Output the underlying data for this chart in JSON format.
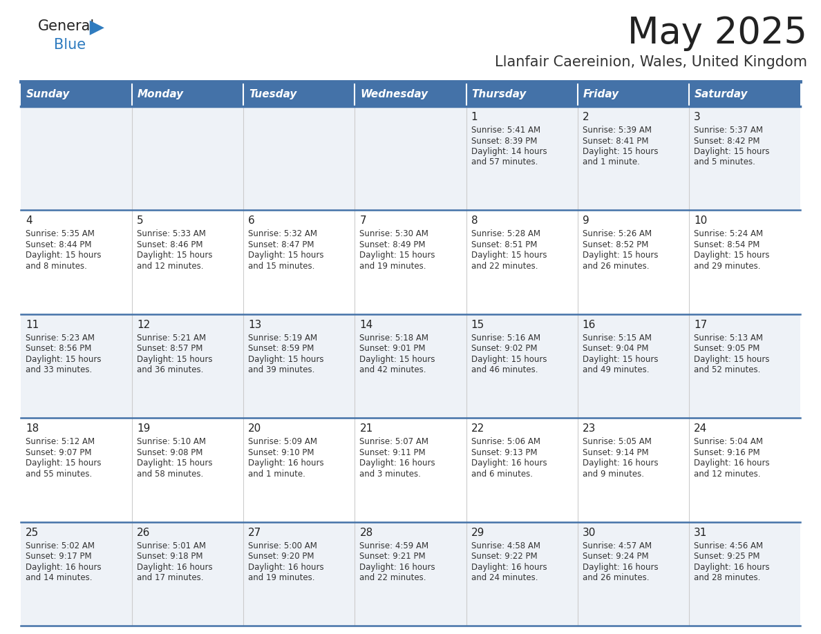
{
  "title": "May 2025",
  "subtitle": "Llanfair Caereinion, Wales, United Kingdom",
  "days_of_week": [
    "Sunday",
    "Monday",
    "Tuesday",
    "Wednesday",
    "Thursday",
    "Friday",
    "Saturday"
  ],
  "header_bg": "#4472a8",
  "header_text": "#ffffff",
  "row_bg_odd": "#eef2f7",
  "row_bg_even": "#ffffff",
  "cell_text_color": "#333333",
  "day_num_color": "#222222",
  "divider_color": "#4472a8",
  "logo_text_color": "#222222",
  "logo_blue_color": "#2e7bbf",
  "title_color": "#222222",
  "subtitle_color": "#333333",
  "calendar_data": [
    [
      {
        "day": "",
        "sunrise": "",
        "sunset": "",
        "daylight": ""
      },
      {
        "day": "",
        "sunrise": "",
        "sunset": "",
        "daylight": ""
      },
      {
        "day": "",
        "sunrise": "",
        "sunset": "",
        "daylight": ""
      },
      {
        "day": "",
        "sunrise": "",
        "sunset": "",
        "daylight": ""
      },
      {
        "day": "1",
        "sunrise": "5:41 AM",
        "sunset": "8:39 PM",
        "daylight": "14 hours\nand 57 minutes."
      },
      {
        "day": "2",
        "sunrise": "5:39 AM",
        "sunset": "8:41 PM",
        "daylight": "15 hours\nand 1 minute."
      },
      {
        "day": "3",
        "sunrise": "5:37 AM",
        "sunset": "8:42 PM",
        "daylight": "15 hours\nand 5 minutes."
      }
    ],
    [
      {
        "day": "4",
        "sunrise": "5:35 AM",
        "sunset": "8:44 PM",
        "daylight": "15 hours\nand 8 minutes."
      },
      {
        "day": "5",
        "sunrise": "5:33 AM",
        "sunset": "8:46 PM",
        "daylight": "15 hours\nand 12 minutes."
      },
      {
        "day": "6",
        "sunrise": "5:32 AM",
        "sunset": "8:47 PM",
        "daylight": "15 hours\nand 15 minutes."
      },
      {
        "day": "7",
        "sunrise": "5:30 AM",
        "sunset": "8:49 PM",
        "daylight": "15 hours\nand 19 minutes."
      },
      {
        "day": "8",
        "sunrise": "5:28 AM",
        "sunset": "8:51 PM",
        "daylight": "15 hours\nand 22 minutes."
      },
      {
        "day": "9",
        "sunrise": "5:26 AM",
        "sunset": "8:52 PM",
        "daylight": "15 hours\nand 26 minutes."
      },
      {
        "day": "10",
        "sunrise": "5:24 AM",
        "sunset": "8:54 PM",
        "daylight": "15 hours\nand 29 minutes."
      }
    ],
    [
      {
        "day": "11",
        "sunrise": "5:23 AM",
        "sunset": "8:56 PM",
        "daylight": "15 hours\nand 33 minutes."
      },
      {
        "day": "12",
        "sunrise": "5:21 AM",
        "sunset": "8:57 PM",
        "daylight": "15 hours\nand 36 minutes."
      },
      {
        "day": "13",
        "sunrise": "5:19 AM",
        "sunset": "8:59 PM",
        "daylight": "15 hours\nand 39 minutes."
      },
      {
        "day": "14",
        "sunrise": "5:18 AM",
        "sunset": "9:01 PM",
        "daylight": "15 hours\nand 42 minutes."
      },
      {
        "day": "15",
        "sunrise": "5:16 AM",
        "sunset": "9:02 PM",
        "daylight": "15 hours\nand 46 minutes."
      },
      {
        "day": "16",
        "sunrise": "5:15 AM",
        "sunset": "9:04 PM",
        "daylight": "15 hours\nand 49 minutes."
      },
      {
        "day": "17",
        "sunrise": "5:13 AM",
        "sunset": "9:05 PM",
        "daylight": "15 hours\nand 52 minutes."
      }
    ],
    [
      {
        "day": "18",
        "sunrise": "5:12 AM",
        "sunset": "9:07 PM",
        "daylight": "15 hours\nand 55 minutes."
      },
      {
        "day": "19",
        "sunrise": "5:10 AM",
        "sunset": "9:08 PM",
        "daylight": "15 hours\nand 58 minutes."
      },
      {
        "day": "20",
        "sunrise": "5:09 AM",
        "sunset": "9:10 PM",
        "daylight": "16 hours\nand 1 minute."
      },
      {
        "day": "21",
        "sunrise": "5:07 AM",
        "sunset": "9:11 PM",
        "daylight": "16 hours\nand 3 minutes."
      },
      {
        "day": "22",
        "sunrise": "5:06 AM",
        "sunset": "9:13 PM",
        "daylight": "16 hours\nand 6 minutes."
      },
      {
        "day": "23",
        "sunrise": "5:05 AM",
        "sunset": "9:14 PM",
        "daylight": "16 hours\nand 9 minutes."
      },
      {
        "day": "24",
        "sunrise": "5:04 AM",
        "sunset": "9:16 PM",
        "daylight": "16 hours\nand 12 minutes."
      }
    ],
    [
      {
        "day": "25",
        "sunrise": "5:02 AM",
        "sunset": "9:17 PM",
        "daylight": "16 hours\nand 14 minutes."
      },
      {
        "day": "26",
        "sunrise": "5:01 AM",
        "sunset": "9:18 PM",
        "daylight": "16 hours\nand 17 minutes."
      },
      {
        "day": "27",
        "sunrise": "5:00 AM",
        "sunset": "9:20 PM",
        "daylight": "16 hours\nand 19 minutes."
      },
      {
        "day": "28",
        "sunrise": "4:59 AM",
        "sunset": "9:21 PM",
        "daylight": "16 hours\nand 22 minutes."
      },
      {
        "day": "29",
        "sunrise": "4:58 AM",
        "sunset": "9:22 PM",
        "daylight": "16 hours\nand 24 minutes."
      },
      {
        "day": "30",
        "sunrise": "4:57 AM",
        "sunset": "9:24 PM",
        "daylight": "16 hours\nand 26 minutes."
      },
      {
        "day": "31",
        "sunrise": "4:56 AM",
        "sunset": "9:25 PM",
        "daylight": "16 hours\nand 28 minutes."
      }
    ]
  ]
}
